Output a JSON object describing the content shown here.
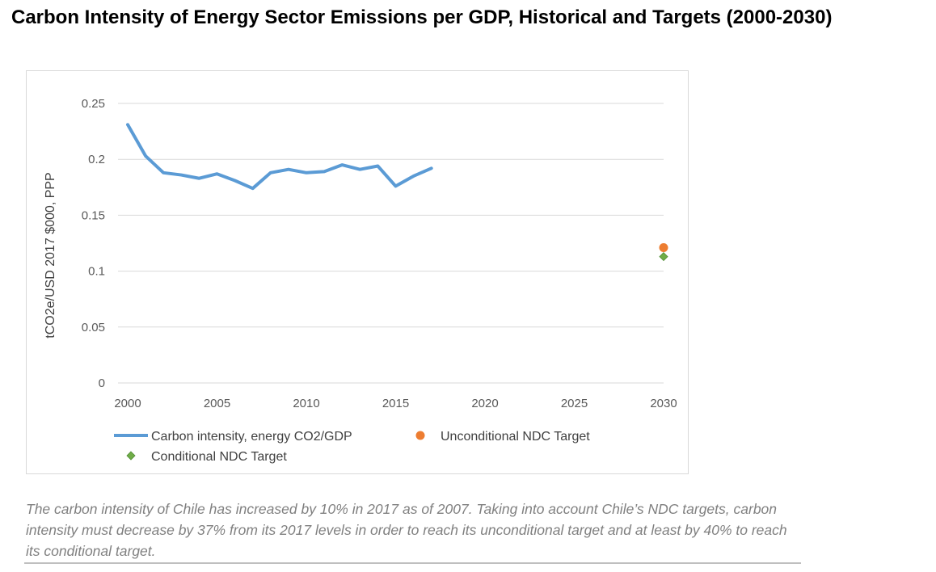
{
  "title": "Carbon Intensity of Energy Sector Emissions per GDP, Historical and Targets (2000-2030)",
  "caption": "The carbon intensity of Chile has increased by 10% in 2017 as of 2007. Taking into account Chile’s NDC targets, carbon intensity must decrease by 37% from its 2017 levels in order to reach its unconditional target and at least by 40% to reach its conditional target.",
  "chart_data": {
    "type": "line",
    "title": "",
    "xlabel": "",
    "ylabel": "tCO2e/USD 2017 $000, PPP",
    "xlim": [
      2000,
      2030
    ],
    "ylim": [
      0,
      0.25
    ],
    "x_ticks": [
      "2000",
      "2005",
      "2010",
      "2015",
      "2020",
      "2025",
      "2030"
    ],
    "y_ticks": [
      "0",
      "0.05",
      "0.1",
      "0.15",
      "0.2",
      "0.25"
    ],
    "grid": "horizontal",
    "legend_position": "bottom",
    "series": [
      {
        "name": "Carbon intensity, energy CO2/GDP",
        "type": "line",
        "color": "#5b9bd5",
        "x": [
          2000,
          2001,
          2002,
          2003,
          2004,
          2005,
          2006,
          2007,
          2008,
          2009,
          2010,
          2011,
          2012,
          2013,
          2014,
          2015,
          2016,
          2017
        ],
        "y": [
          0.231,
          0.203,
          0.188,
          0.186,
          0.183,
          0.187,
          0.181,
          0.174,
          0.188,
          0.191,
          0.188,
          0.189,
          0.195,
          0.191,
          0.194,
          0.176,
          0.185,
          0.192
        ]
      },
      {
        "name": "Unconditional NDC Target",
        "type": "scatter",
        "marker": "circle",
        "color": "#ed7d31",
        "x": [
          2030
        ],
        "y": [
          0.121
        ]
      },
      {
        "name": "Conditional NDC Target",
        "type": "scatter",
        "marker": "diamond",
        "color": "#70ad47",
        "x": [
          2030
        ],
        "y": [
          0.113
        ]
      }
    ]
  }
}
